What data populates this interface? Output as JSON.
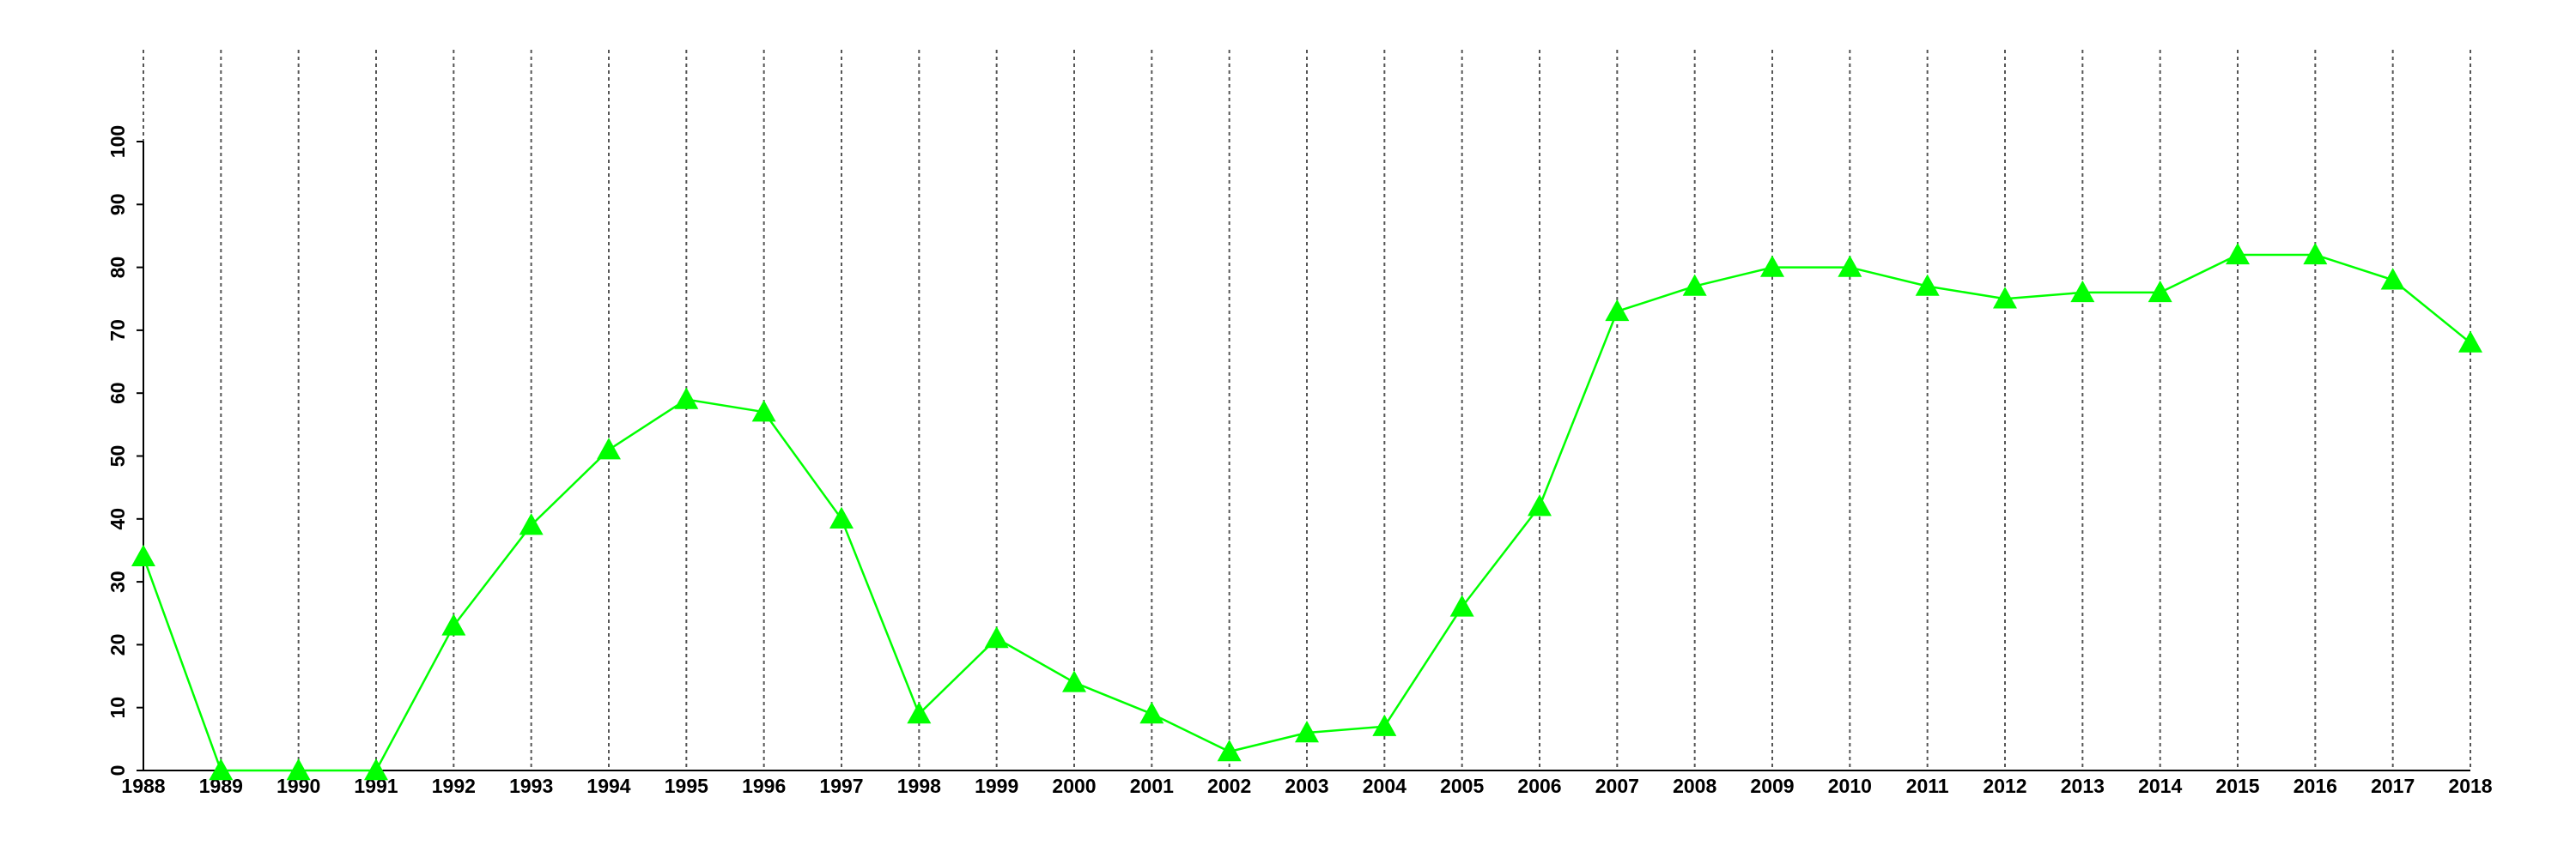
{
  "chart_data": {
    "type": "line",
    "color": "#00ff00",
    "marker": "triangle",
    "x": [
      1988,
      1989,
      1990,
      1991,
      1992,
      1993,
      1994,
      1995,
      1996,
      1997,
      1998,
      1999,
      2000,
      2001,
      2002,
      2003,
      2004,
      2005,
      2006,
      2007,
      2008,
      2009,
      2010,
      2011,
      2012,
      2013,
      2014,
      2015,
      2016,
      2017,
      2018
    ],
    "values": [
      34,
      0,
      0,
      0,
      23,
      39,
      51,
      59,
      57,
      40,
      9,
      21,
      14,
      9,
      3,
      6,
      7,
      26,
      42,
      73,
      77,
      80,
      80,
      77,
      75,
      76,
      76,
      82,
      82,
      78,
      68
    ],
    "xlim": [
      1988,
      2018
    ],
    "xticks": [
      1988,
      1989,
      1990,
      1991,
      1992,
      1993,
      1994,
      1995,
      1996,
      1997,
      1998,
      1999,
      2000,
      2001,
      2002,
      2003,
      2004,
      2005,
      2006,
      2007,
      2008,
      2009,
      2010,
      2011,
      2012,
      2013,
      2014,
      2015,
      2016,
      2017,
      2018
    ],
    "ylim": [
      0,
      100
    ],
    "yticks": [
      0,
      10,
      20,
      30,
      40,
      50,
      60,
      70,
      80,
      90,
      100
    ],
    "grid": "x"
  }
}
